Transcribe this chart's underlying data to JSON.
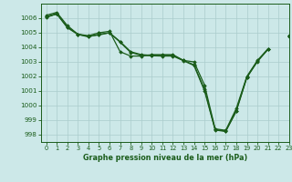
{
  "title": "Graphe pression niveau de la mer (hPa)",
  "bg_color": "#cce8e8",
  "grid_color": "#aacccc",
  "line_color": "#1a5c1a",
  "marker_color": "#1a5c1a",
  "xlim": [
    -0.5,
    23
  ],
  "ylim": [
    997.5,
    1007.0
  ],
  "yticks": [
    998,
    999,
    1000,
    1001,
    1002,
    1003,
    1004,
    1005,
    1006
  ],
  "xticks": [
    0,
    1,
    2,
    3,
    4,
    5,
    6,
    7,
    8,
    9,
    10,
    11,
    12,
    13,
    14,
    15,
    16,
    17,
    18,
    19,
    20,
    21,
    22,
    23
  ],
  "series": [
    [
      1006.2,
      1006.4,
      1005.5,
      1004.9,
      1004.8,
      1005.0,
      1005.1,
      1003.7,
      1003.4,
      1003.4,
      1003.5,
      1003.5,
      1003.5,
      1003.1,
      1003.0,
      1001.4,
      998.4,
      998.3,
      999.8,
      1002.0,
      1003.1,
      1003.9,
      null,
      1004.8
    ],
    [
      1006.1,
      1006.3,
      1005.4,
      1004.9,
      1004.75,
      1004.85,
      1005.0,
      1004.4,
      1003.7,
      1003.5,
      1003.45,
      1003.45,
      1003.45,
      1003.1,
      1002.8,
      1001.1,
      998.35,
      998.25,
      999.65,
      1001.95,
      1003.05,
      1003.85,
      null,
      1004.75
    ],
    [
      1006.05,
      1006.3,
      1005.35,
      1004.88,
      1004.72,
      1004.9,
      1005.0,
      1004.35,
      1003.65,
      1003.45,
      1003.42,
      1003.4,
      1003.4,
      1003.08,
      1002.75,
      1001.0,
      998.32,
      998.22,
      999.6,
      1001.92,
      1003.02,
      1003.87,
      null,
      1004.77
    ],
    [
      1006.1,
      1006.3,
      null,
      null,
      null,
      1005.0,
      null,
      null,
      null,
      null,
      null,
      null,
      null,
      null,
      null,
      null,
      null,
      null,
      null,
      null,
      null,
      null,
      null,
      1004.8
    ]
  ]
}
